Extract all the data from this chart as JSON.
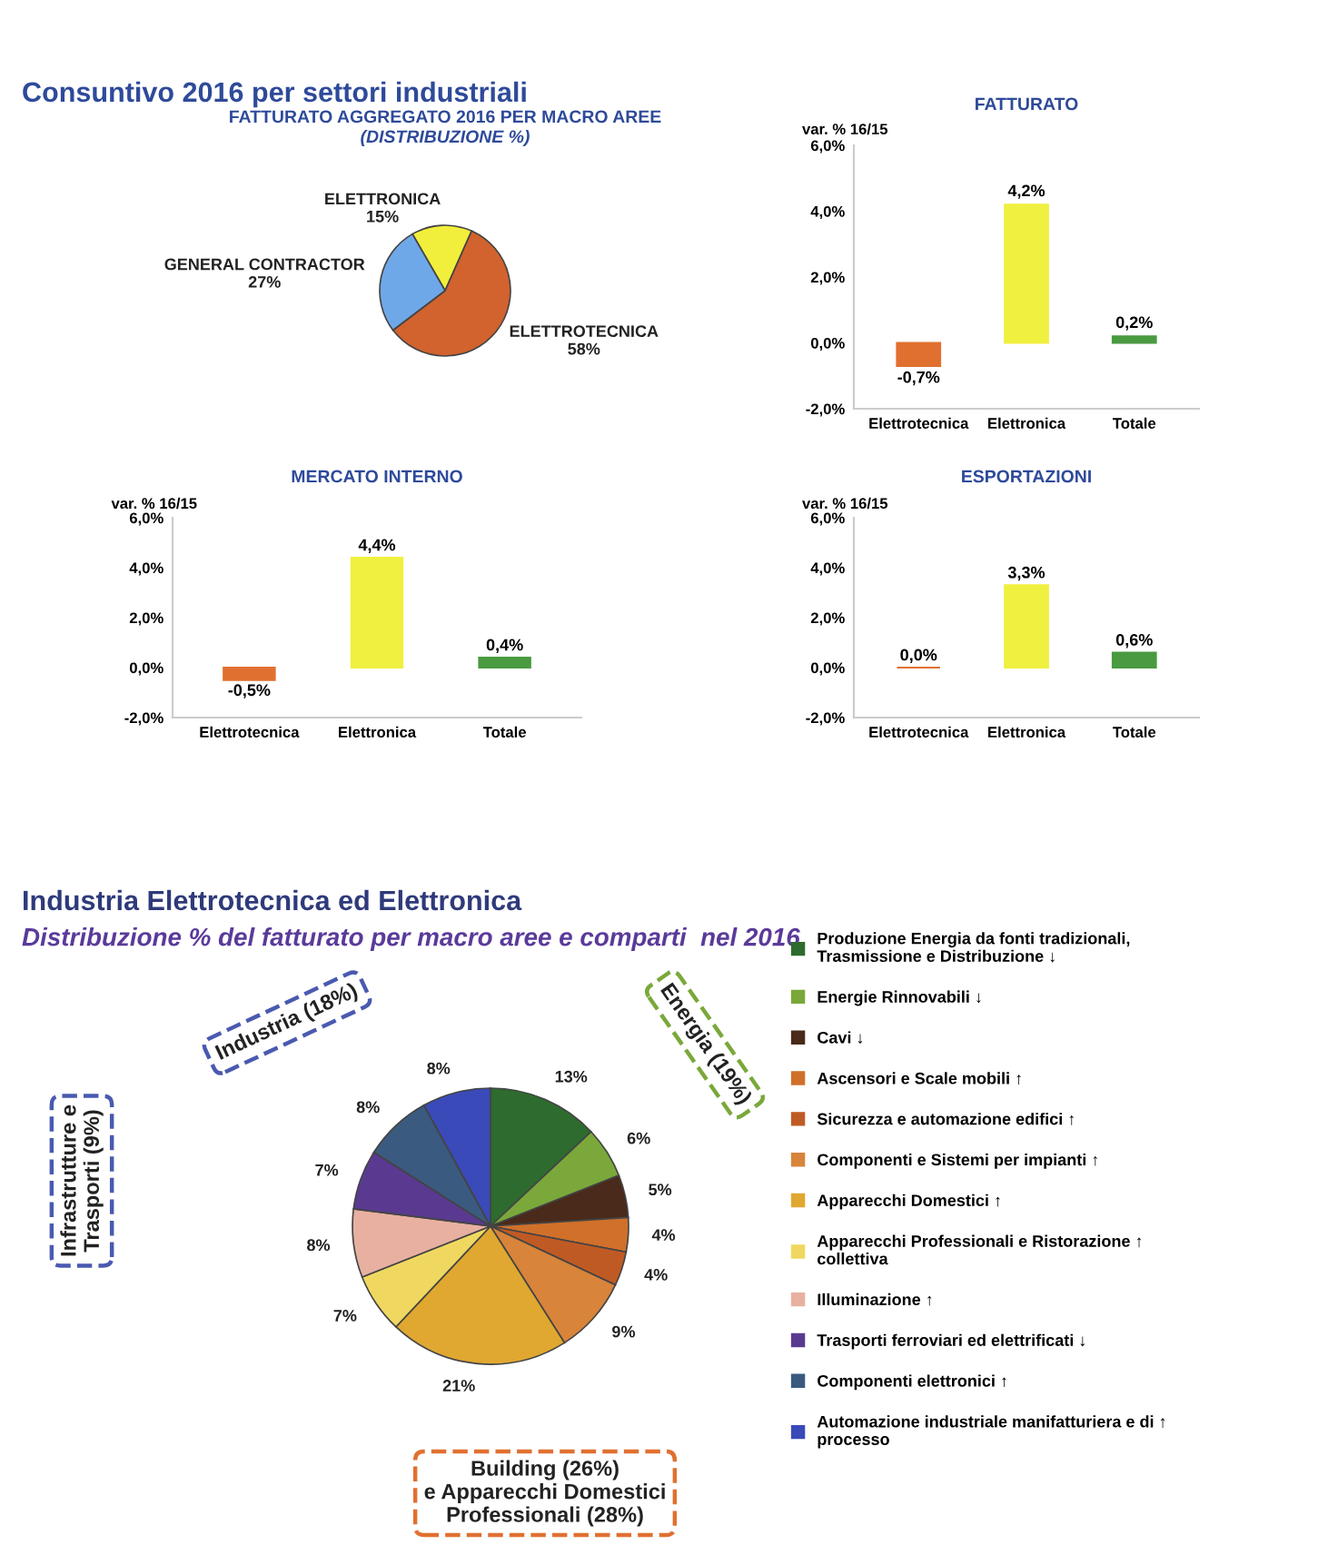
{
  "chart_data": [
    {
      "type": "pie",
      "title": "FATTURATO AGGREGATO 2016 PER MACRO AREE",
      "subtitle": "(DISTRIBUZIONE %)",
      "annotations": [
        "Consuntivo 2016 per settori industriali"
      ],
      "categories": [
        "ELETTRONICA",
        "ELETTROTECNICA",
        "GENERAL CONTRACTOR"
      ],
      "values": [
        15,
        58,
        27
      ],
      "value_labels": [
        "15%",
        "58%",
        "27%"
      ],
      "colors": [
        "#f2ee3c",
        "#d2622e",
        "#6fa8e8"
      ]
    },
    {
      "type": "bar",
      "title": "FATTURATO",
      "ylabel": "var. % 16/15",
      "categories": [
        "Elettrotecnica",
        "Elettronica",
        "Totale"
      ],
      "values": [
        -0.7,
        4.2,
        0.2
      ],
      "value_labels": [
        "-0,7%",
        "4,2%",
        "0,2%"
      ],
      "colors": [
        "#e07030",
        "#f0f040",
        "#4a9a40"
      ],
      "ylim": [
        -2,
        6
      ],
      "yticks": [
        {
          "value": -2,
          "label": "-2,0%"
        },
        {
          "value": 0,
          "label": "0,0%"
        },
        {
          "value": 2,
          "label": "2,0%"
        },
        {
          "value": 4,
          "label": "4,0%"
        },
        {
          "value": 6,
          "label": "6,0%"
        }
      ]
    },
    {
      "type": "bar",
      "title": "MERCATO INTERNO",
      "ylabel": "var. % 16/15",
      "categories": [
        "Elettrotecnica",
        "Elettronica",
        "Totale"
      ],
      "values": [
        -0.5,
        4.4,
        0.4
      ],
      "value_labels": [
        "-0,5%",
        "4,4%",
        "0,4%"
      ],
      "colors": [
        "#e07030",
        "#f0f040",
        "#4a9a40"
      ],
      "ylim": [
        -2,
        6
      ],
      "yticks": [
        {
          "value": -2,
          "label": "-2,0%"
        },
        {
          "value": 0,
          "label": "0,0%"
        },
        {
          "value": 2,
          "label": "2,0%"
        },
        {
          "value": 4,
          "label": "4,0%"
        },
        {
          "value": 6,
          "label": "6,0%"
        }
      ]
    },
    {
      "type": "bar",
      "title": "ESPORTAZIONI",
      "ylabel": "var. % 16/15",
      "categories": [
        "Elettrotecnica",
        "Elettronica",
        "Totale"
      ],
      "values": [
        0.0,
        3.3,
        0.6
      ],
      "value_labels": [
        "0,0%",
        "3,3%",
        "0,6%"
      ],
      "colors": [
        "#e07030",
        "#f0f040",
        "#4a9a40"
      ],
      "ylim": [
        -2,
        6
      ],
      "yticks": [
        {
          "value": -2,
          "label": "-2,0%"
        },
        {
          "value": 0,
          "label": "0,0%"
        },
        {
          "value": 2,
          "label": "2,0%"
        },
        {
          "value": 4,
          "label": "4,0%"
        },
        {
          "value": 6,
          "label": "6,0%"
        }
      ]
    },
    {
      "type": "pie",
      "title": "Industria Elettrotecnica ed Elettronica",
      "subtitle": "Distribuzione % del fatturato per macro aree e comparti  nel 2016",
      "legend": "right",
      "annotations": [
        "Industria (18%)",
        "Energia (19%)",
        "Infrastrutture e\nTrasporti (9%)",
        "Building (26%)\ne Apparecchi Domestici\nProfessionali (28%)"
      ],
      "categories": [
        "Produzione Energia da fonti tradizionali,\nTrasmissione e Distribuzione ↓",
        "Energie Rinnovabili ↓",
        "Cavi ↓",
        "Ascensori e Scale mobili ↑",
        "Sicurezza e automazione edifici ↑",
        "Componenti e Sistemi per impianti ↑",
        "Apparecchi Domestici ↑",
        "Apparecchi Professionali e Ristorazione ↑\ncollettiva",
        "Illuminazione ↑",
        "Trasporti ferroviari ed elettrificati ↓",
        "Componenti elettronici ↑",
        "Automazione industriale manifatturiera e di ↑\nprocesso"
      ],
      "values": [
        13,
        6,
        5,
        4,
        4,
        9,
        21,
        7,
        8,
        7,
        8,
        8
      ],
      "value_labels": [
        "13%",
        "6%",
        "5%",
        "4%",
        "4%",
        "9%",
        "21%",
        "7%",
        "8%",
        "7%",
        "8%",
        "8%"
      ],
      "colors": [
        "#2e6b2e",
        "#7aa83a",
        "#4a2a1a",
        "#d0702a",
        "#c05a24",
        "#d8843a",
        "#e0a830",
        "#f0d860",
        "#e8b0a0",
        "#5a3a90",
        "#3a5a80",
        "#3a4ab8"
      ]
    }
  ]
}
